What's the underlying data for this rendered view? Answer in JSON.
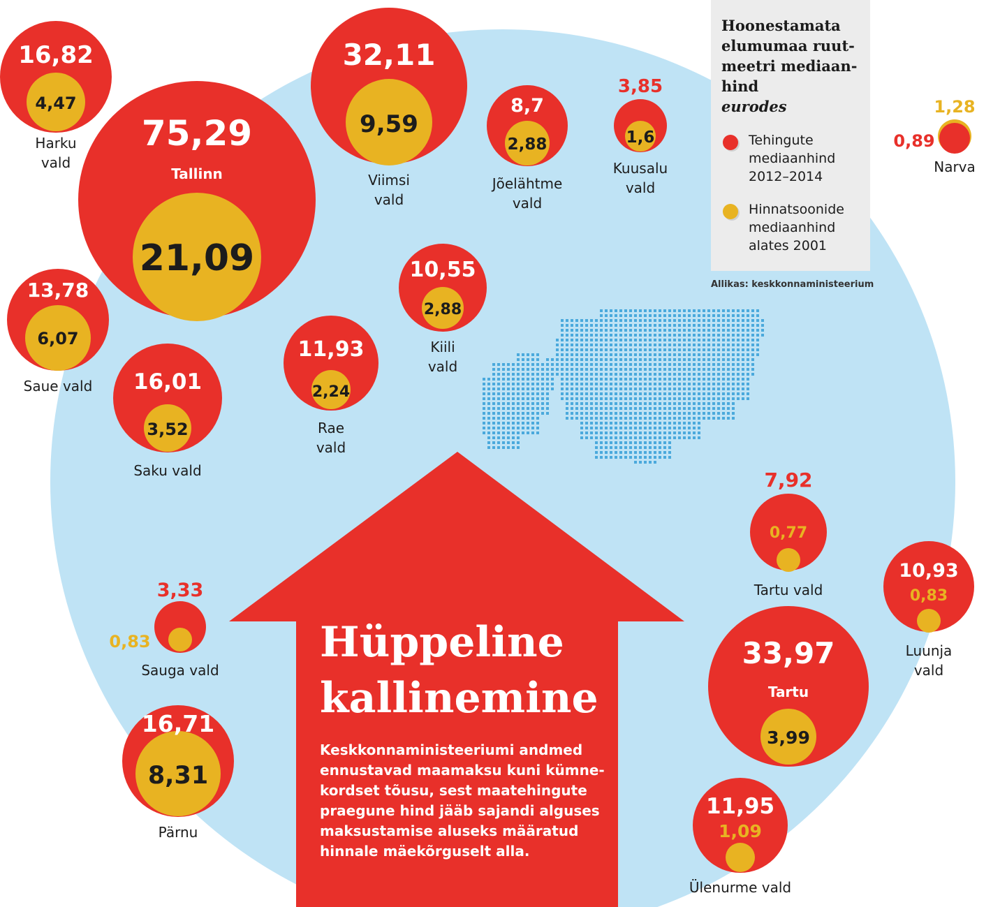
{
  "legend": {
    "title": "Hoonestamata elumumaa ruut-meetri mediaan-hind",
    "unit": "eurodes",
    "series": [
      {
        "name": "Tehingute mediaanhind 2012–2014",
        "color": "#e8302a"
      },
      {
        "name": "Hinnatsoonide mediaanhind alates 2001",
        "color": "#e8b322"
      }
    ]
  },
  "source": "Allikas: keskkonnaministeerium",
  "headline": "Hüppeline kallinemine",
  "body": "Keskkonnaministeeriumi andmed ennustavad maamaksu kuni kümne-kordset tõusu, sest maatehingute praegune hind jääb sajandi alguses maksustamise aluseks määratud hinnale mäekõrguselt alla.",
  "colors": {
    "background_circle": "#bfe3f5",
    "transaction": "#e8302a",
    "zone": "#e8b322",
    "map_dots": "#4aa9dc"
  },
  "chart_data": {
    "type": "bubble",
    "title": "Hoonestamata elumumaa ruut-meetri mediaan-hind",
    "unit": "eurodes",
    "series": [
      "Tehingute mediaanhind 2012–2014",
      "Hinnatsoonide mediaanhind alates 2001"
    ],
    "points": [
      {
        "place": "Harku vald",
        "transaction": "16,82",
        "zone": "4,47"
      },
      {
        "place": "Tallinn",
        "transaction": "75,29",
        "zone": "21,09"
      },
      {
        "place": "Viimsi vald",
        "transaction": "32,11",
        "zone": "9,59"
      },
      {
        "place": "Jõelähtme vald",
        "transaction": "8,7",
        "zone": "2,88"
      },
      {
        "place": "Kuusalu vald",
        "transaction": "3,85",
        "zone": "1,6"
      },
      {
        "place": "Narva",
        "transaction": "0,89",
        "zone": "1,28"
      },
      {
        "place": "Saue vald",
        "transaction": "13,78",
        "zone": "6,07"
      },
      {
        "place": "Saku vald",
        "transaction": "16,01",
        "zone": "3,52"
      },
      {
        "place": "Rae vald",
        "transaction": "11,93",
        "zone": "2,24"
      },
      {
        "place": "Kiili vald",
        "transaction": "10,55",
        "zone": "2,88"
      },
      {
        "place": "Tartu vald",
        "transaction": "7,92",
        "zone": "0,77"
      },
      {
        "place": "Luunja vald",
        "transaction": "10,93",
        "zone": "0,83"
      },
      {
        "place": "Sauga vald",
        "transaction": "3,33",
        "zone": "0,83"
      },
      {
        "place": "Tartu",
        "transaction": "33,97",
        "zone": "3,99"
      },
      {
        "place": "Pärnu",
        "transaction": "16,71",
        "zone": "8,31"
      },
      {
        "place": "Ülenurme vald",
        "transaction": "11,95",
        "zone": "1,09"
      }
    ]
  }
}
